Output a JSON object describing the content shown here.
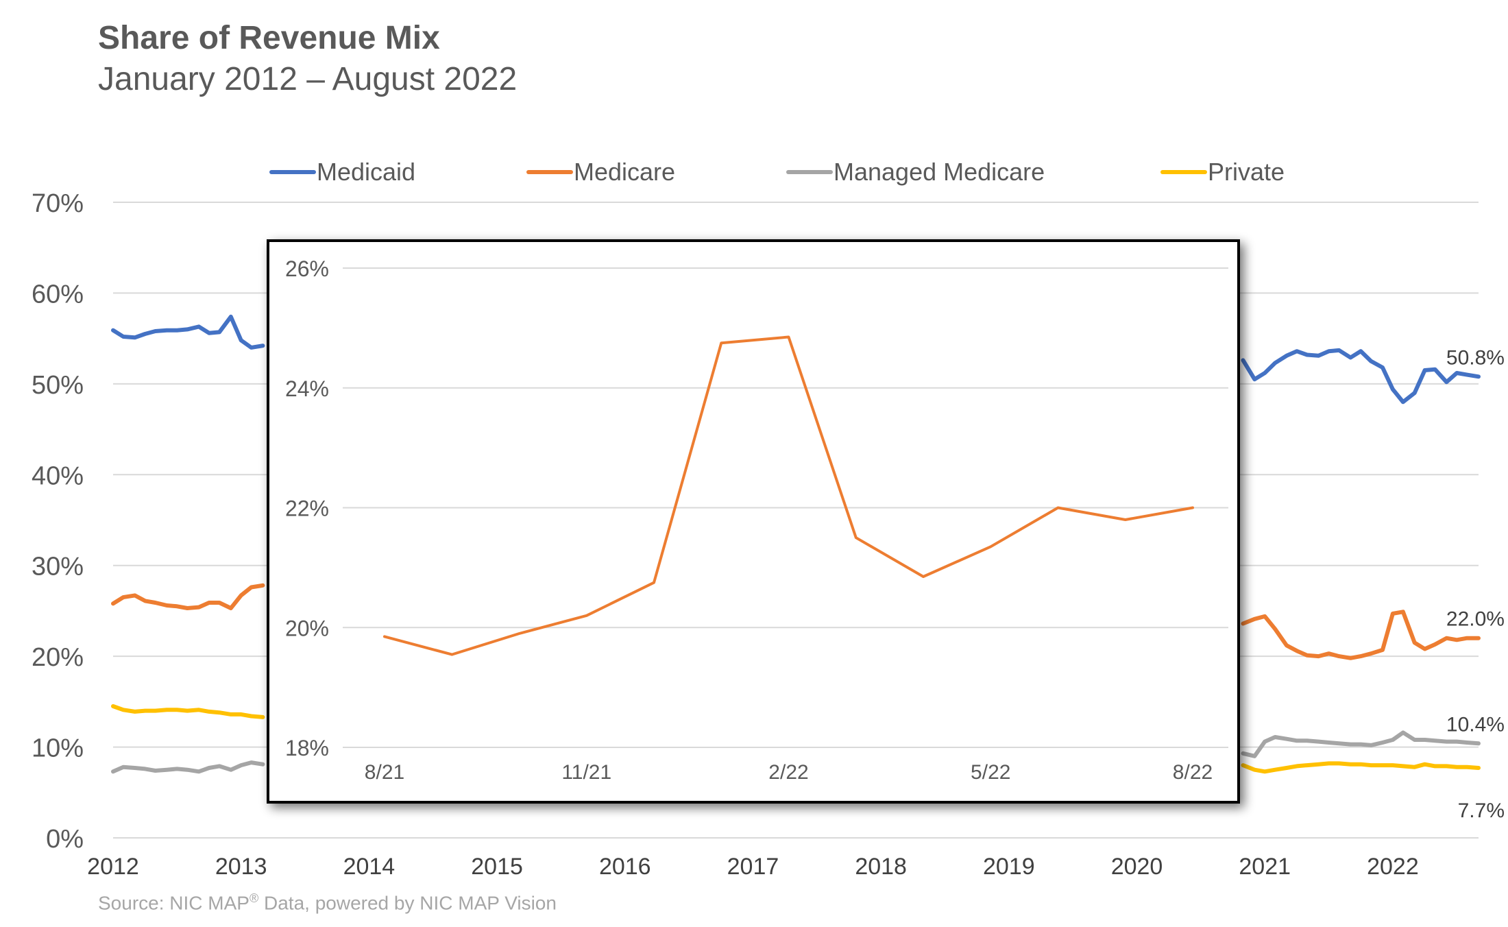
{
  "title": "Share of Revenue Mix",
  "subtitle": "January 2012 – August 2022",
  "source": {
    "text": "Source: NIC MAP",
    "superscript": "®",
    "suffix": " Data, powered by NIC MAP Vision"
  },
  "chart_data": [
    {
      "id": "main",
      "type": "line",
      "title": "Share of Revenue Mix",
      "subtitle": "January 2012 – August 2022",
      "xlabel": "",
      "ylabel": "",
      "xlim": [
        2012,
        2022.67
      ],
      "ylim": [
        0,
        70
      ],
      "xticks": [
        2012,
        2013,
        2014,
        2015,
        2016,
        2017,
        2018,
        2019,
        2020,
        2021,
        2022
      ],
      "xtick_labels": [
        "2012",
        "2013",
        "2014",
        "2015",
        "2016",
        "2017",
        "2018",
        "2019",
        "2020",
        "2021",
        "2022"
      ],
      "yticks": [
        0,
        10,
        20,
        30,
        40,
        50,
        60,
        70
      ],
      "ytick_labels": [
        "0%",
        "10%",
        "20%",
        "30%",
        "40%",
        "50%",
        "60%",
        "70%"
      ],
      "grid": true,
      "legend_position": "top",
      "series": [
        {
          "name": "Medicaid",
          "color": "#4472c4",
          "end_label": "50.8%",
          "x": [
            2012.0,
            2012.08,
            2012.17,
            2012.25,
            2012.33,
            2012.42,
            2012.5,
            2012.58,
            2012.67,
            2012.75,
            2012.83,
            2012.92,
            2013.0,
            2013.08,
            2013.17,
            2020.83,
            2020.92,
            2021.0,
            2021.08,
            2021.17,
            2021.25,
            2021.33,
            2021.42,
            2021.5,
            2021.58,
            2021.67,
            2021.75,
            2021.83,
            2021.92,
            2022.0,
            2022.08,
            2022.17,
            2022.25,
            2022.33,
            2022.42,
            2022.5,
            2022.58,
            2022.67
          ],
          "values": [
            55.9,
            55.2,
            55.1,
            55.5,
            55.8,
            55.9,
            55.9,
            56.0,
            56.3,
            55.6,
            55.7,
            57.4,
            54.8,
            54.0,
            54.2,
            52.6,
            50.5,
            51.2,
            52.3,
            53.1,
            53.6,
            53.2,
            53.1,
            53.6,
            53.7,
            52.9,
            53.6,
            52.5,
            51.8,
            49.4,
            48.0,
            49.0,
            51.5,
            51.6,
            50.2,
            51.2,
            51.0,
            50.8
          ]
        },
        {
          "name": "Medicare",
          "color": "#ed7d31",
          "end_label": "22.0%",
          "x": [
            2012.0,
            2012.08,
            2012.17,
            2012.25,
            2012.33,
            2012.42,
            2012.5,
            2012.58,
            2012.67,
            2012.75,
            2012.83,
            2012.92,
            2013.0,
            2013.08,
            2013.17,
            2020.83,
            2020.92,
            2021.0,
            2021.08,
            2021.17,
            2021.25,
            2021.33,
            2021.42,
            2021.5,
            2021.58,
            2021.67,
            2021.75,
            2021.83,
            2021.92,
            2022.0,
            2022.08,
            2022.17,
            2022.25,
            2022.33,
            2022.42,
            2022.5,
            2022.58,
            2022.67
          ],
          "values": [
            25.8,
            26.5,
            26.7,
            26.1,
            25.9,
            25.6,
            25.5,
            25.3,
            25.4,
            25.9,
            25.9,
            25.3,
            26.7,
            27.6,
            27.8,
            23.6,
            24.1,
            24.4,
            23.0,
            21.2,
            20.6,
            20.1,
            20.0,
            20.3,
            20.0,
            19.8,
            20.0,
            20.3,
            20.7,
            24.7,
            24.9,
            21.5,
            20.8,
            21.3,
            22.0,
            21.8,
            22.0,
            22.0
          ]
        },
        {
          "name": "Managed Medicare",
          "color": "#a5a5a5",
          "end_label": "10.4%",
          "x": [
            2012.0,
            2012.08,
            2012.17,
            2012.25,
            2012.33,
            2012.42,
            2012.5,
            2012.58,
            2012.67,
            2012.75,
            2012.83,
            2012.92,
            2013.0,
            2013.08,
            2013.17,
            2020.83,
            2020.92,
            2021.0,
            2021.08,
            2021.17,
            2021.25,
            2021.33,
            2021.42,
            2021.5,
            2021.58,
            2021.67,
            2021.75,
            2021.83,
            2021.92,
            2022.0,
            2022.08,
            2022.17,
            2022.25,
            2022.33,
            2022.42,
            2022.5,
            2022.58,
            2022.67
          ],
          "values": [
            7.3,
            7.8,
            7.7,
            7.6,
            7.4,
            7.5,
            7.6,
            7.5,
            7.3,
            7.7,
            7.9,
            7.5,
            8.0,
            8.3,
            8.1,
            9.3,
            9.0,
            10.6,
            11.1,
            10.9,
            10.7,
            10.7,
            10.6,
            10.5,
            10.4,
            10.3,
            10.3,
            10.2,
            10.5,
            10.8,
            11.6,
            10.8,
            10.8,
            10.7,
            10.6,
            10.6,
            10.5,
            10.4
          ]
        },
        {
          "name": "Private",
          "color": "#ffc000",
          "end_label": "7.7%",
          "x": [
            2012.0,
            2012.08,
            2012.17,
            2012.25,
            2012.33,
            2012.42,
            2012.5,
            2012.58,
            2012.67,
            2012.75,
            2012.83,
            2012.92,
            2013.0,
            2013.08,
            2013.17,
            2020.83,
            2020.92,
            2021.0,
            2021.08,
            2021.17,
            2021.25,
            2021.33,
            2021.42,
            2021.5,
            2021.58,
            2021.67,
            2021.75,
            2021.83,
            2021.92,
            2022.0,
            2022.08,
            2022.17,
            2022.25,
            2022.33,
            2022.42,
            2022.5,
            2022.58,
            2022.67
          ],
          "values": [
            14.5,
            14.1,
            13.9,
            14.0,
            14.0,
            14.1,
            14.1,
            14.0,
            14.1,
            13.9,
            13.8,
            13.6,
            13.6,
            13.4,
            13.3,
            8.0,
            7.5,
            7.3,
            7.5,
            7.7,
            7.9,
            8.0,
            8.1,
            8.2,
            8.2,
            8.1,
            8.1,
            8.0,
            8.0,
            8.0,
            7.9,
            7.8,
            8.1,
            7.9,
            7.9,
            7.8,
            7.8,
            7.7
          ]
        }
      ]
    },
    {
      "id": "inset",
      "type": "line",
      "title": "",
      "xlabel": "",
      "ylabel": "",
      "ylim": [
        18,
        26
      ],
      "yticks": [
        18,
        20,
        22,
        24,
        26
      ],
      "ytick_labels": [
        "18%",
        "20%",
        "22%",
        "24%",
        "26%"
      ],
      "categories": [
        "8/21",
        "9/21",
        "10/21",
        "11/21",
        "12/21",
        "1/22",
        "2/22",
        "3/22",
        "4/22",
        "5/22",
        "6/22",
        "7/22",
        "8/22"
      ],
      "xtick_labels": [
        "8/21",
        "11/21",
        "2/22",
        "5/22",
        "8/22"
      ],
      "xtick_indices": [
        0,
        3,
        6,
        9,
        12
      ],
      "grid": true,
      "series": [
        {
          "name": "Medicare",
          "color": "#ed7d31",
          "values": [
            19.85,
            19.55,
            19.9,
            20.2,
            20.75,
            24.75,
            24.85,
            21.5,
            20.85,
            21.35,
            22.0,
            21.8,
            22.0
          ]
        }
      ]
    }
  ]
}
